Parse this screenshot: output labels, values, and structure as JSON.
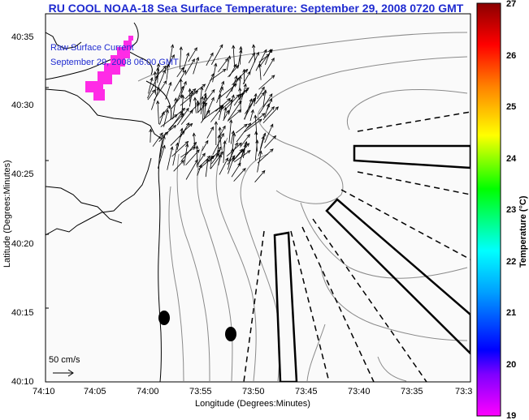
{
  "title": "RU COOL  NOAA-18  Sea Surface Temperature:  September 29, 2008 0720 GMT",
  "legend": {
    "line1": "Raw Surface Current",
    "line2": "September 29, 2008 06:00 GMT",
    "scale_label": "50 cm/s"
  },
  "axes": {
    "xlabel": "Longitude (Degrees:Minutes)",
    "ylabel": "Latitude (Degrees:Minutes)",
    "x_ticks": [
      "74:10",
      "74:05",
      "74:00",
      "73:55",
      "73:50",
      "73:45",
      "73:40",
      "73:35",
      "73:3"
    ],
    "y_ticks": [
      "40:35",
      "40:30",
      "40:25",
      "40:20",
      "40:15",
      "40:10"
    ]
  },
  "colorbar": {
    "label": "Temperature (°C)",
    "ticks": [
      "27",
      "26",
      "25",
      "24",
      "23",
      "22",
      "21",
      "20",
      "19"
    ],
    "range": [
      19,
      27
    ],
    "colors": [
      "#ff00ff",
      "#0000ff",
      "#00ffff",
      "#00ff00",
      "#ffff00",
      "#ff8000",
      "#ff0000",
      "#8b0000"
    ]
  },
  "colors": {
    "title": "#1f2bd0",
    "sst_patch": "#ff2be6",
    "coast": "#000000",
    "contour": "#888888"
  }
}
